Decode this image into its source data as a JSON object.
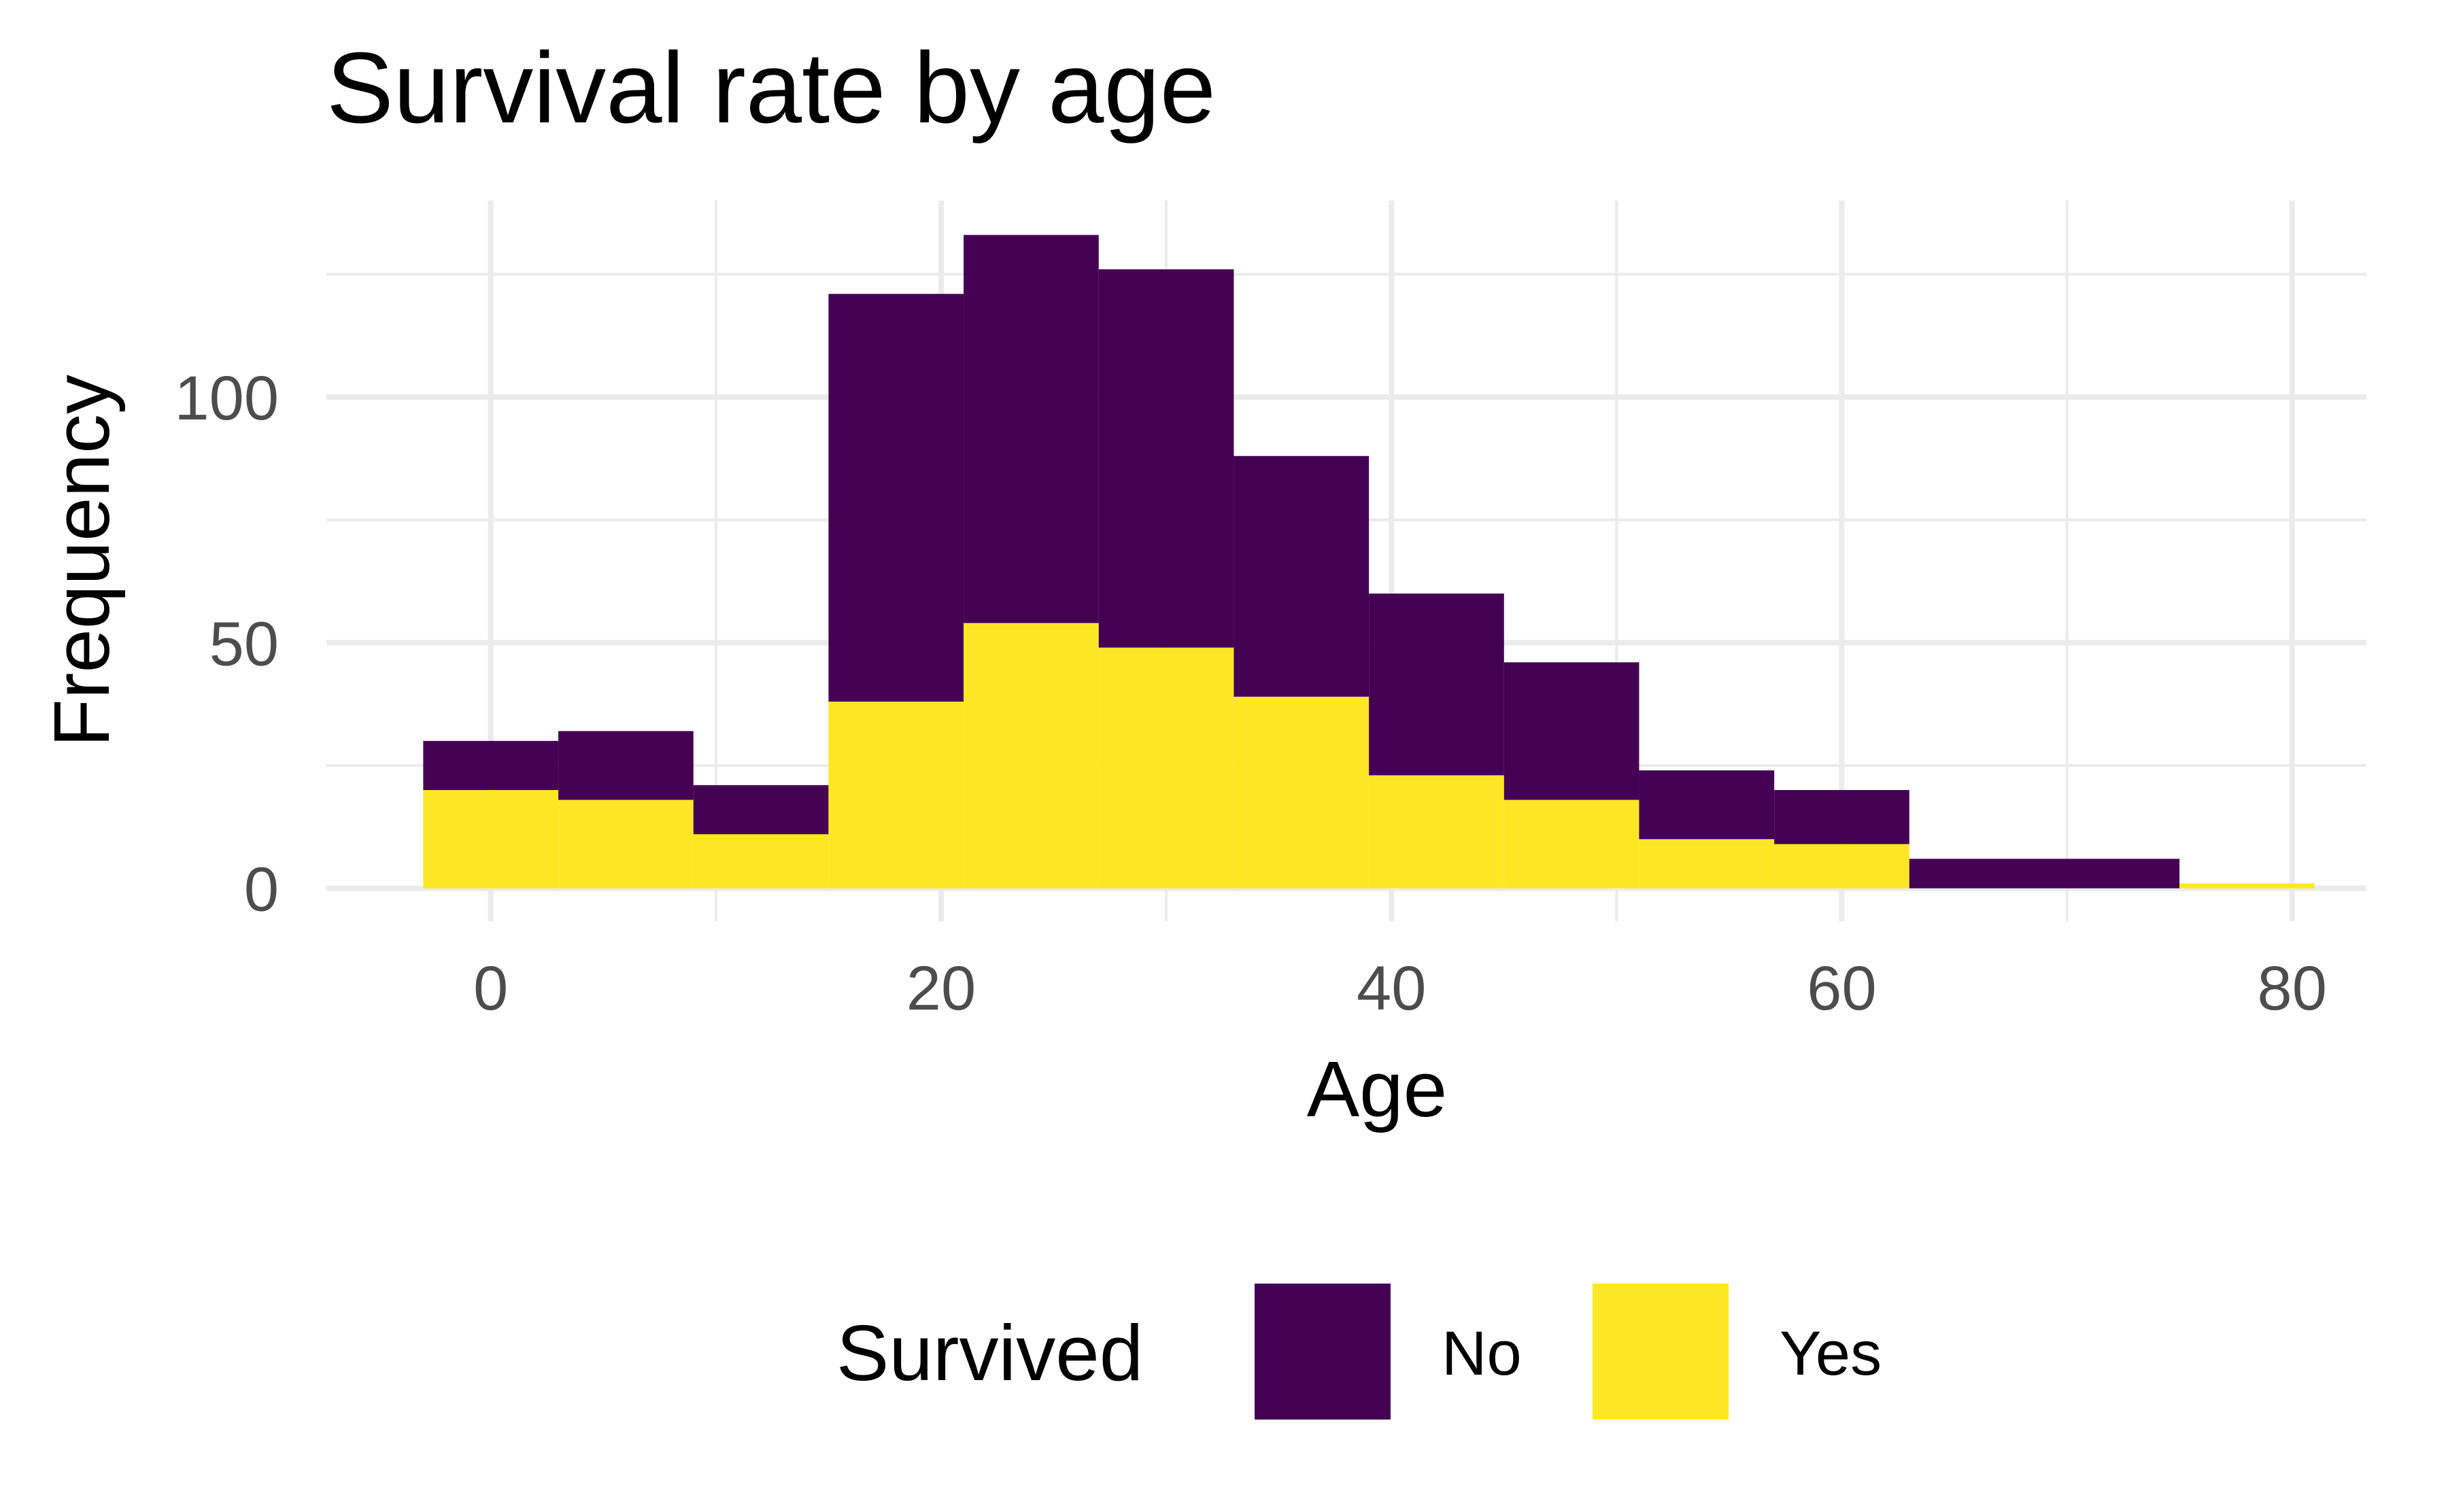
{
  "chart_data": {
    "type": "bar",
    "stacked": true,
    "title": "Survival rate by age",
    "xlabel": "Age",
    "ylabel": "Frequency",
    "bin_width": 6,
    "bin_centers": [
      0,
      6,
      12,
      18,
      24,
      30,
      36,
      42,
      48,
      54,
      60,
      66,
      72,
      78
    ],
    "series": [
      {
        "name": "No",
        "color": "#440154",
        "values": [
          10,
          14,
          10,
          83,
          79,
          77,
          49,
          37,
          28,
          14,
          11,
          6,
          6,
          0
        ]
      },
      {
        "name": "Yes",
        "color": "#FDE725",
        "values": [
          20,
          18,
          11,
          38,
          54,
          49,
          39,
          23,
          18,
          10,
          9,
          0,
          0,
          1
        ]
      }
    ],
    "x_ticks": [
      0,
      20,
      40,
      60,
      80
    ],
    "y_ticks": [
      0,
      50,
      100
    ],
    "xlim": [
      -7.3,
      83.3
    ],
    "ylim": [
      -6.7,
      140
    ],
    "grid": true,
    "legend": {
      "title": "Survived",
      "position": "bottom",
      "entries": [
        "No",
        "Yes"
      ]
    }
  }
}
